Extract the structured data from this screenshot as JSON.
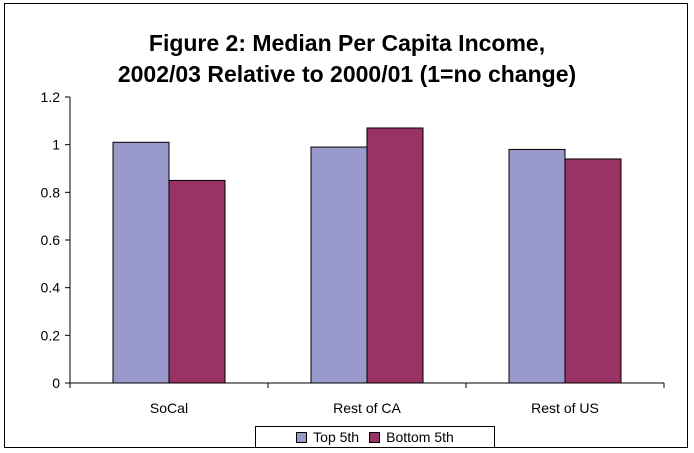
{
  "chart_data": {
    "type": "bar",
    "title_lines": [
      "Figure 2: Median Per Capita Income,",
      "2002/03 Relative to 2000/01 (1=no change)"
    ],
    "categories": [
      "SoCal",
      "Rest of CA",
      "Rest of US"
    ],
    "series": [
      {
        "name": "Top 5th",
        "values": [
          1.01,
          0.99,
          0.98
        ],
        "color": "#9999cc"
      },
      {
        "name": "Bottom 5th",
        "values": [
          0.85,
          1.07,
          0.94
        ],
        "color": "#993366"
      }
    ],
    "ylim": [
      0,
      1.2
    ],
    "yticks": [
      "0",
      "0.2",
      "0.4",
      "0.6",
      "0.8",
      "1",
      "1.2"
    ],
    "grid": false,
    "legend_position": "bottom"
  }
}
